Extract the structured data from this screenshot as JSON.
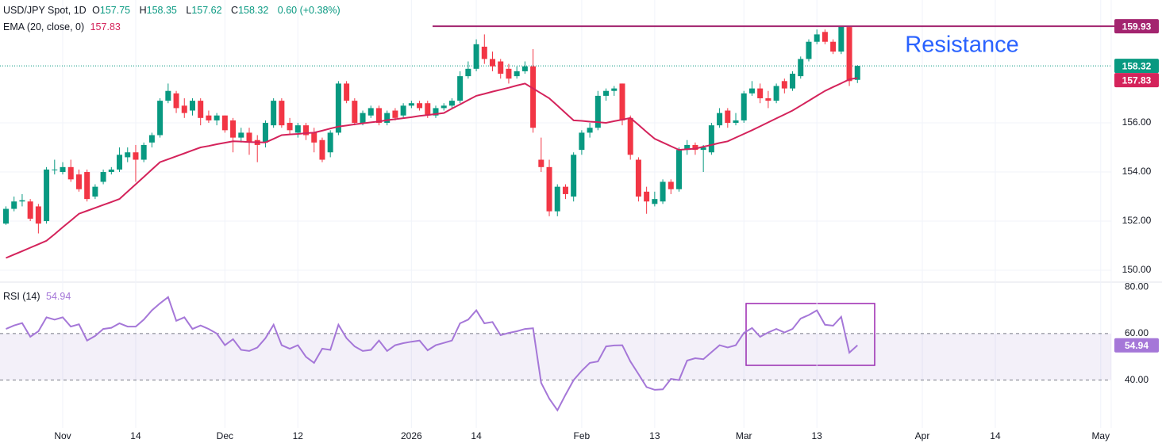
{
  "chart_data": [
    {
      "type": "candlestick",
      "title": "USD/JPY Spot, 1D",
      "header": [
        {
          "label": "O",
          "value": 157.75
        },
        {
          "label": "H",
          "value": 158.35
        },
        {
          "label": "L",
          "value": 157.62
        },
        {
          "label": "C",
          "value": 158.32
        }
      ],
      "change": "0.60 (+0.38%)",
      "categories": [
        null,
        null,
        null,
        null,
        null,
        null,
        null,
        "Nov",
        null,
        null,
        null,
        null,
        null,
        null,
        null,
        null,
        "14",
        null,
        null,
        null,
        null,
        null,
        null,
        null,
        null,
        null,
        null,
        "Dec",
        null,
        null,
        null,
        null,
        null,
        null,
        null,
        null,
        "12",
        null,
        null,
        null,
        null,
        null,
        null,
        null,
        null,
        null,
        null,
        null,
        null,
        null,
        "2026",
        null,
        null,
        null,
        null,
        null,
        null,
        null,
        "14",
        null,
        null,
        null,
        null,
        null,
        null,
        null,
        null,
        null,
        null,
        null,
        null,
        "Feb",
        null,
        null,
        null,
        null,
        null,
        null,
        null,
        null,
        "13",
        null,
        null,
        null,
        null,
        null,
        null,
        null,
        null,
        null,
        null,
        "Mar",
        null,
        null,
        null,
        null,
        null,
        null,
        null,
        null,
        "13",
        null,
        null,
        null,
        null,
        null,
        null,
        null,
        null,
        null,
        null,
        null,
        null,
        "Apr",
        null,
        null,
        null,
        null,
        null,
        null,
        null,
        null,
        "14",
        null,
        null,
        null,
        null,
        null,
        null,
        null,
        null,
        null,
        null,
        null,
        null,
        "May",
        null
      ],
      "open": [
        151.9,
        152.5,
        152.8,
        152.8,
        152.6,
        152.0,
        154.1,
        154.0,
        154.2,
        153.9,
        154.0,
        153.0,
        153.6,
        154.0,
        154.1,
        154.6,
        154.8,
        154.5,
        155.2,
        155.5,
        156.9,
        157.2,
        156.7,
        156.5,
        156.9,
        156.3,
        156.1,
        156.3,
        156.1,
        155.4,
        155.6,
        155.3,
        155.2,
        155.9,
        156.9,
        156.0,
        155.6,
        155.9,
        155.6,
        155.3,
        154.8,
        155.6,
        157.6,
        156.9,
        156.0,
        156.3,
        156.6,
        156.0,
        156.5,
        156.3,
        156.7,
        156.8,
        156.8,
        156.3,
        156.6,
        156.7,
        156.9,
        157.9,
        158.2,
        159.1,
        158.6,
        158.5,
        158.2,
        157.9,
        158.1,
        158.3,
        154.5,
        154.2,
        152.4,
        153.4,
        153.0,
        154.9,
        155.6,
        155.8,
        157.1,
        157.3,
        157.6,
        156.2,
        154.5,
        153.2,
        152.7,
        152.8,
        153.6,
        153.3,
        154.9,
        155.1,
        154.9,
        154.8,
        155.9,
        156.5,
        156.0,
        156.1,
        157.2,
        157.4,
        157.0,
        156.9,
        157.7,
        157.4,
        157.9,
        158.6,
        159.3,
        159.7,
        159.3,
        158.9,
        159.9,
        157.75,
        null,
        null,
        null,
        null,
        null,
        null,
        null,
        null,
        null,
        null,
        null,
        null,
        null,
        null,
        null,
        null,
        null,
        null,
        null,
        null,
        null,
        null,
        null,
        null,
        null,
        null,
        null,
        null,
        null,
        null,
        null
      ],
      "high": [
        152.6,
        153.0,
        153.1,
        152.9,
        152.7,
        154.2,
        154.5,
        154.4,
        154.5,
        154.1,
        154.1,
        153.5,
        154.1,
        154.2,
        155.0,
        155.0,
        155.1,
        155.2,
        155.6,
        157.0,
        157.6,
        157.3,
        157.0,
        157.0,
        157.0,
        156.5,
        156.4,
        156.3,
        156.2,
        155.8,
        155.8,
        155.5,
        156.1,
        157.0,
        157.0,
        156.2,
        156.0,
        156.0,
        155.8,
        155.4,
        155.7,
        157.7,
        157.7,
        157.0,
        156.5,
        156.7,
        156.7,
        156.5,
        156.6,
        156.8,
        156.9,
        156.9,
        156.9,
        156.7,
        156.8,
        157.0,
        158.1,
        158.5,
        159.4,
        159.6,
        158.9,
        158.6,
        158.4,
        158.3,
        158.5,
        159.0,
        155.4,
        154.5,
        153.5,
        153.5,
        154.8,
        155.7,
        156.0,
        157.3,
        157.4,
        157.5,
        157.6,
        156.3,
        154.6,
        153.4,
        153.2,
        153.7,
        153.7,
        155.0,
        155.3,
        155.2,
        155.1,
        156.0,
        156.6,
        156.6,
        156.4,
        157.3,
        157.7,
        157.6,
        157.3,
        157.6,
        157.8,
        158.1,
        158.7,
        159.4,
        159.8,
        159.8,
        159.4,
        159.93,
        159.93,
        158.35,
        null,
        null,
        null,
        null,
        null,
        null,
        null,
        null,
        null,
        null,
        null,
        null,
        null,
        null,
        null,
        null,
        null,
        null,
        null,
        null,
        null,
        null,
        null,
        null,
        null,
        null,
        null,
        null,
        null,
        null,
        null
      ],
      "low": [
        151.85,
        152.4,
        152.6,
        152.0,
        151.5,
        151.9,
        153.9,
        153.9,
        153.6,
        153.2,
        152.8,
        152.9,
        153.5,
        153.9,
        154.0,
        154.4,
        153.6,
        154.4,
        155.0,
        155.4,
        156.8,
        156.4,
        156.2,
        156.3,
        155.9,
        156.0,
        155.9,
        155.6,
        154.8,
        155.2,
        154.7,
        154.4,
        155.0,
        155.8,
        155.8,
        155.5,
        155.4,
        155.3,
        154.8,
        154.4,
        154.6,
        155.5,
        156.8,
        155.9,
        155.9,
        156.2,
        155.9,
        155.9,
        156.1,
        156.2,
        156.6,
        156.5,
        156.2,
        156.2,
        156.5,
        156.6,
        156.8,
        157.8,
        158.1,
        158.4,
        158.1,
        157.8,
        157.6,
        157.8,
        158.0,
        155.6,
        154.0,
        152.2,
        152.2,
        152.9,
        152.8,
        154.7,
        155.4,
        155.7,
        156.9,
        157.1,
        155.9,
        154.5,
        152.8,
        152.3,
        152.6,
        152.7,
        153.1,
        153.2,
        154.7,
        154.7,
        154.0,
        154.7,
        155.8,
        155.8,
        155.9,
        156.0,
        157.1,
        156.8,
        156.6,
        156.8,
        157.2,
        157.3,
        157.8,
        158.5,
        159.2,
        159.2,
        158.8,
        158.8,
        157.5,
        157.62,
        null,
        null,
        null,
        null,
        null,
        null,
        null,
        null,
        null,
        null,
        null,
        null,
        null,
        null,
        null,
        null,
        null,
        null,
        null,
        null,
        null,
        null,
        null,
        null,
        null,
        null,
        null,
        null,
        null,
        null,
        null
      ],
      "close": [
        152.5,
        152.8,
        152.85,
        152.1,
        151.9,
        154.1,
        154.1,
        154.2,
        153.7,
        153.3,
        152.9,
        153.4,
        154.0,
        154.1,
        154.7,
        154.8,
        154.5,
        155.1,
        155.5,
        156.9,
        157.3,
        156.6,
        156.4,
        156.9,
        156.2,
        156.1,
        156.3,
        155.7,
        155.4,
        155.6,
        155.2,
        155.1,
        156.0,
        156.9,
        155.9,
        155.7,
        155.9,
        155.5,
        155.2,
        154.5,
        155.6,
        157.6,
        156.9,
        156.0,
        156.4,
        156.6,
        156.0,
        156.4,
        156.2,
        156.7,
        156.8,
        156.6,
        156.3,
        156.6,
        156.7,
        156.9,
        157.9,
        158.2,
        159.2,
        158.6,
        158.3,
        158.0,
        157.8,
        158.1,
        158.3,
        155.8,
        154.2,
        152.4,
        153.4,
        153.1,
        154.7,
        155.6,
        155.8,
        157.1,
        157.3,
        157.4,
        156.1,
        154.7,
        153.0,
        152.8,
        152.9,
        153.6,
        153.3,
        154.9,
        155.1,
        154.9,
        155.0,
        155.9,
        156.4,
        156.0,
        156.1,
        157.2,
        157.4,
        157.0,
        156.9,
        157.5,
        157.4,
        158.0,
        158.6,
        159.3,
        159.6,
        159.3,
        158.9,
        159.93,
        157.7,
        158.32,
        null,
        null,
        null,
        null,
        null,
        null,
        null,
        null,
        null,
        null,
        null,
        null,
        null,
        null,
        null,
        null,
        null,
        null,
        null,
        null,
        null,
        null,
        null,
        null,
        null,
        null,
        null,
        null,
        null,
        null,
        null
      ],
      "up_color": "#089981",
      "down_color": "#f23645",
      "series": [
        {
          "name": "EMA (20, close, 0)",
          "color": "#d4235b",
          "values": [
            150.5,
            150.64,
            150.78,
            150.92,
            151.06,
            151.2,
            151.47,
            151.75,
            152.02,
            152.3,
            152.42,
            152.54,
            152.66,
            152.78,
            152.9,
            153.2,
            153.5,
            153.8,
            154.1,
            154.4,
            154.52,
            154.64,
            154.76,
            154.88,
            155.0,
            155.06,
            155.13,
            155.19,
            155.25,
            155.24,
            155.22,
            155.21,
            155.2,
            155.35,
            155.5,
            155.53,
            155.55,
            155.58,
            155.6,
            155.68,
            155.77,
            155.85,
            155.89,
            155.94,
            155.98,
            156.02,
            156.06,
            156.11,
            156.15,
            156.19,
            156.23,
            156.28,
            156.32,
            156.36,
            156.4,
            156.58,
            156.75,
            156.93,
            157.1,
            157.18,
            157.27,
            157.35,
            157.43,
            157.52,
            157.6,
            157.4,
            157.2,
            157.0,
            156.7,
            156.4,
            156.1,
            156.08,
            156.05,
            156.03,
            156.0,
            156.07,
            156.13,
            156.2,
            155.92,
            155.63,
            155.35,
            155.2,
            155.05,
            154.9,
            154.93,
            154.95,
            155.03,
            155.1,
            155.18,
            155.25,
            155.4,
            155.55,
            155.7,
            155.86,
            156.02,
            156.18,
            156.34,
            156.5,
            156.7,
            156.9,
            157.1,
            157.3,
            157.46,
            157.61,
            157.77,
            157.83,
            null,
            null,
            null,
            null,
            null,
            null,
            null,
            null,
            null,
            null,
            null,
            null,
            null,
            null,
            null,
            null,
            null,
            null,
            null,
            null,
            null,
            null,
            null,
            null,
            null,
            null,
            null,
            null,
            null,
            null,
            null
          ]
        }
      ],
      "ema_last": 157.83,
      "last_close": 158.32,
      "resistance": {
        "value": 159.93,
        "label": "Resistance",
        "color": "#a3246f",
        "label_color": "#2962ff"
      },
      "ylim": [
        149.55,
        161.0
      ],
      "yticks": [
        {
          "value": 150,
          "label": "150.00"
        },
        {
          "value": 152,
          "label": "152.00"
        },
        {
          "value": 154,
          "label": "154.00"
        },
        {
          "value": 156,
          "label": "156.00"
        }
      ],
      "grid": true
    },
    {
      "type": "line",
      "series": [
        {
          "name": "RSI (14)",
          "color": "#a577d8",
          "values": [
            62,
            63.5,
            64.5,
            58.6,
            61,
            67,
            66,
            67,
            63,
            64,
            57,
            59,
            62,
            62.5,
            64.4,
            63,
            63,
            66,
            70,
            73,
            75.7,
            65.5,
            67,
            62,
            63.5,
            62,
            60,
            55,
            57.6,
            53,
            52.5,
            54,
            58,
            63.8,
            55,
            53.5,
            55,
            50,
            47.4,
            53.5,
            53,
            63.8,
            58,
            54.5,
            52.5,
            53,
            57,
            52.5,
            55,
            55.9,
            56.5,
            57,
            52.8,
            55,
            56,
            57,
            64.4,
            66,
            70,
            64.4,
            65,
            59.3,
            60.3,
            61,
            62,
            62.3,
            38.8,
            32,
            27,
            33.7,
            40,
            44,
            47.4,
            48,
            54.5,
            54.9,
            55,
            48,
            42.6,
            37,
            35.8,
            36,
            40.5,
            40,
            48.4,
            49.4,
            49,
            52,
            55,
            54,
            55,
            60.3,
            62.4,
            58.6,
            60.5,
            62,
            60.5,
            62,
            66.5,
            68,
            70,
            63.8,
            63.4,
            67.2,
            51.8,
            54.94,
            null,
            null,
            null,
            null,
            null,
            null,
            null,
            null,
            null,
            null,
            null,
            null,
            null,
            null,
            null,
            null,
            null,
            null,
            null,
            null,
            null,
            null,
            null,
            null,
            null,
            null,
            null,
            null,
            null,
            null,
            null
          ]
        }
      ],
      "last_value": 54.94,
      "levels": [
        60,
        40
      ],
      "band_color": "#7e57c2",
      "ylim": [
        19.4,
        81.8
      ],
      "yticks": [
        {
          "value": 40,
          "label": "40.00"
        },
        {
          "value": 60,
          "label": "60.00"
        },
        {
          "value": 80,
          "label": "80.00"
        }
      ],
      "grid": false
    }
  ]
}
